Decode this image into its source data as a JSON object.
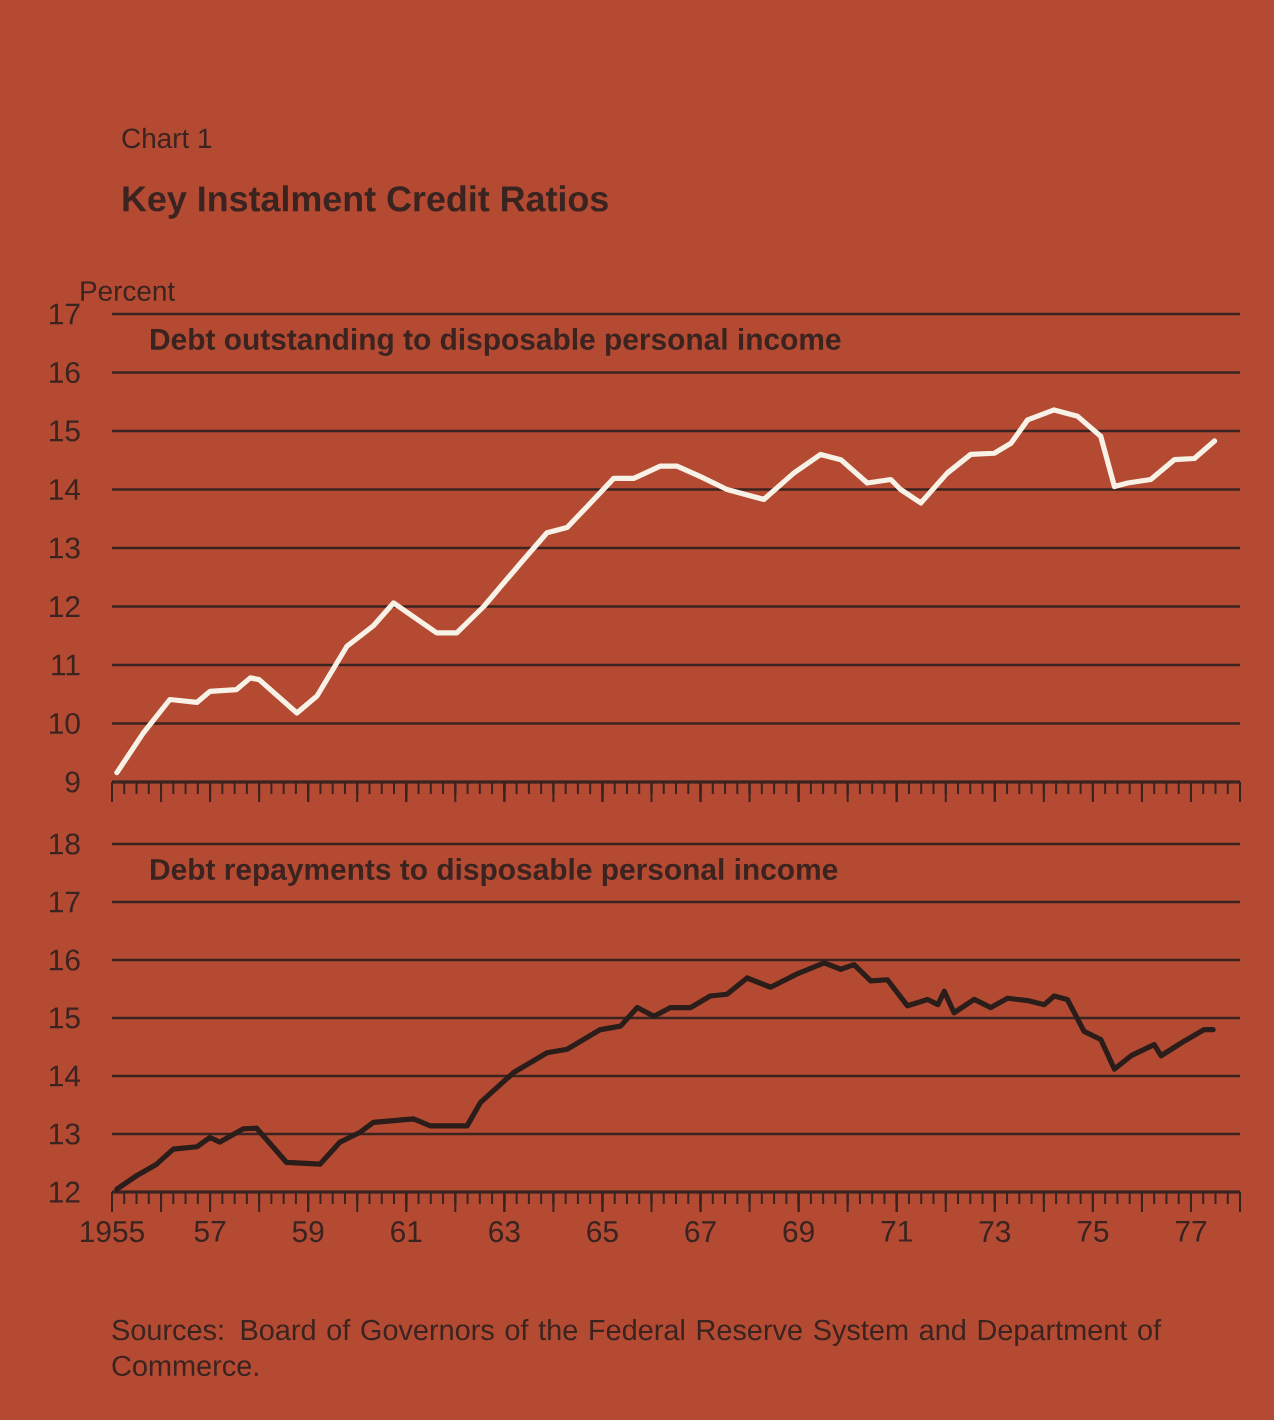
{
  "chart_data": [
    {
      "type": "line",
      "title": "Key Instalment Credit Ratios",
      "subtitle": "Debt outstanding to disposable personal income",
      "ylabel": "Percent",
      "annotations": [
        "Chart 1"
      ],
      "xlim": [
        1955,
        1978
      ],
      "ylim": [
        9,
        17
      ],
      "yticks": [
        9,
        10,
        11,
        12,
        13,
        14,
        15,
        16,
        17
      ],
      "xticks": [
        1955,
        1957,
        1959,
        1961,
        1963,
        1965,
        1967,
        1969,
        1971,
        1973,
        1975,
        1977
      ],
      "tick_labels": "y",
      "grid": "y",
      "marker": "none",
      "line_style": "solid",
      "series": [
        {
          "color": "#f7f1e6",
          "x": [
            1955.1,
            1955.64,
            1956.18,
            1956.73,
            1957.0,
            1957.54,
            1957.82,
            1958.0,
            1958.77,
            1959.18,
            1959.79,
            1960.33,
            1960.74,
            1961.62,
            1962.03,
            1962.58,
            1963.33,
            1963.87,
            1964.28,
            1964.69,
            1965.23,
            1965.64,
            1966.18,
            1966.52,
            1967.0,
            1967.54,
            1968.29,
            1968.9,
            1969.45,
            1969.86,
            1970.4,
            1970.88,
            1971.08,
            1971.49,
            1972.03,
            1972.51,
            1972.99,
            1973.33,
            1973.67,
            1974.21,
            1974.69,
            1975.16,
            1975.44,
            1975.71,
            1976.18,
            1976.66,
            1977.07,
            1977.48
          ],
          "values": [
            9.16,
            9.84,
            10.41,
            10.36,
            10.55,
            10.58,
            10.78,
            10.75,
            10.18,
            10.47,
            11.32,
            11.67,
            12.06,
            11.55,
            11.55,
            12.0,
            12.74,
            13.26,
            13.35,
            13.71,
            14.19,
            14.19,
            14.4,
            14.4,
            14.22,
            14.0,
            13.83,
            14.28,
            14.6,
            14.51,
            14.11,
            14.17,
            14.0,
            13.77,
            14.28,
            14.6,
            14.62,
            14.79,
            15.19,
            15.36,
            15.25,
            14.91,
            14.05,
            14.11,
            14.17,
            14.51,
            14.53,
            14.83
          ]
        }
      ]
    },
    {
      "type": "line",
      "subtitle": "Debt repayments to disposable personal income",
      "annotations": [
        "Sources:  Board of Governors of the Federal Reserve System and Department of Commerce."
      ],
      "xlim": [
        1955,
        1978
      ],
      "ylim": [
        12,
        18
      ],
      "yticks": [
        12,
        13,
        14,
        15,
        16,
        17,
        18
      ],
      "xticks": [
        1955,
        {
          "value": 1957,
          "label": "57"
        },
        {
          "value": 1959,
          "label": "59"
        },
        {
          "value": 1961,
          "label": "61"
        },
        {
          "value": 1963,
          "label": "63"
        },
        {
          "value": 1965,
          "label": "65"
        },
        {
          "value": 1967,
          "label": "67"
        },
        {
          "value": 1969,
          "label": "69"
        },
        {
          "value": 1971,
          "label": "71"
        },
        {
          "value": 1973,
          "label": "73"
        },
        {
          "value": 1975,
          "label": "75"
        },
        {
          "value": 1977,
          "label": "77"
        }
      ],
      "grid": "y",
      "marker": "none",
      "line_style": "solid",
      "series": [
        {
          "color": "#2a1d1a",
          "x": [
            1955.1,
            1955.5,
            1955.91,
            1956.25,
            1956.73,
            1957.0,
            1957.2,
            1957.68,
            1957.95,
            1958.56,
            1959.24,
            1959.65,
            1960.06,
            1960.33,
            1961.15,
            1961.49,
            1962.24,
            1962.51,
            1963.19,
            1963.87,
            1964.28,
            1964.96,
            1965.37,
            1965.71,
            1966.05,
            1966.39,
            1966.8,
            1967.2,
            1967.54,
            1967.95,
            1968.43,
            1968.97,
            1969.52,
            1969.86,
            1970.13,
            1970.47,
            1970.81,
            1971.22,
            1971.63,
            1971.84,
            1971.97,
            1972.17,
            1972.58,
            1972.92,
            1973.26,
            1973.67,
            1974.01,
            1974.21,
            1974.48,
            1974.82,
            1975.16,
            1975.44,
            1975.78,
            1976.25,
            1976.39,
            1976.8,
            1977.27,
            1977.45
          ],
          "values": [
            12.05,
            12.28,
            12.48,
            12.74,
            12.78,
            12.94,
            12.86,
            13.09,
            13.1,
            12.51,
            12.48,
            12.86,
            13.03,
            13.2,
            13.26,
            13.14,
            13.14,
            13.54,
            14.06,
            14.4,
            14.46,
            14.8,
            14.86,
            15.18,
            15.03,
            15.18,
            15.18,
            15.38,
            15.41,
            15.69,
            15.53,
            15.76,
            15.95,
            15.84,
            15.92,
            15.64,
            15.66,
            15.21,
            15.32,
            15.23,
            15.46,
            15.09,
            15.32,
            15.18,
            15.34,
            15.3,
            15.23,
            15.38,
            15.32,
            14.77,
            14.63,
            14.12,
            14.35,
            14.54,
            14.35,
            14.57,
            14.8,
            14.8
          ]
        }
      ]
    }
  ]
}
